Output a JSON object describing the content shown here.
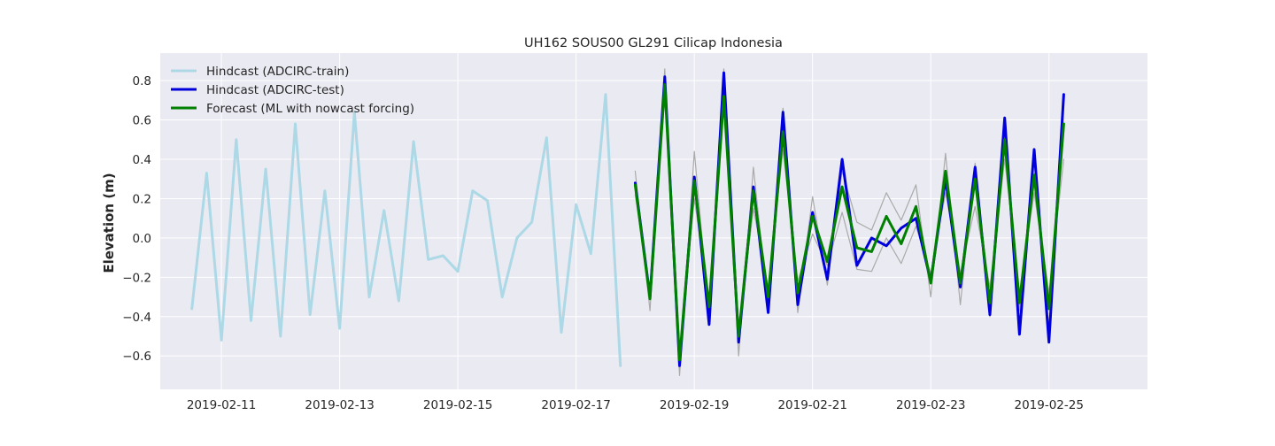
{
  "chart_data": {
    "type": "line",
    "title": "UH162 SOUS00 GL291 Cilicap Indonesia",
    "xlabel": "",
    "ylabel": "Elevation (m)",
    "xlim": [
      "2019-02-09T23:10",
      "2019-02-26T16:00"
    ],
    "ylim": [
      -0.77,
      0.94
    ],
    "x_ticks": [
      "2019-02-11",
      "2019-02-13",
      "2019-02-15",
      "2019-02-17",
      "2019-02-19",
      "2019-02-21",
      "2019-02-23",
      "2019-02-25"
    ],
    "y_ticks": [
      -0.6,
      -0.4,
      -0.2,
      0.0,
      0.2,
      0.4,
      0.6,
      0.8
    ],
    "y_tick_labels": [
      "−0.6",
      "−0.4",
      "−0.2",
      "0.0",
      "0.2",
      "0.4",
      "0.6",
      "0.8"
    ],
    "grid": true,
    "legend_position": "top-left",
    "background": "#eaeaf2",
    "series": [
      {
        "name": "Hindcast (ADCIRC-train)",
        "color": "#add8e6",
        "width": 3,
        "x": [
          "2019-02-10T12:00",
          "2019-02-10T18:00",
          "2019-02-11T00:00",
          "2019-02-11T06:00",
          "2019-02-11T12:00",
          "2019-02-11T18:00",
          "2019-02-12T00:00",
          "2019-02-12T06:00",
          "2019-02-12T12:00",
          "2019-02-12T18:00",
          "2019-02-13T00:00",
          "2019-02-13T06:00",
          "2019-02-13T12:00",
          "2019-02-13T18:00",
          "2019-02-14T00:00",
          "2019-02-14T06:00",
          "2019-02-14T12:00",
          "2019-02-14T18:00",
          "2019-02-15T00:00",
          "2019-02-15T06:00",
          "2019-02-15T12:00",
          "2019-02-15T18:00",
          "2019-02-16T00:00",
          "2019-02-16T06:00",
          "2019-02-16T12:00",
          "2019-02-16T18:00",
          "2019-02-17T00:00",
          "2019-02-17T06:00",
          "2019-02-17T12:00",
          "2019-02-17T18:00"
        ],
        "values": [
          -0.36,
          0.33,
          -0.52,
          0.5,
          -0.42,
          0.35,
          -0.5,
          0.58,
          -0.39,
          0.24,
          -0.46,
          0.64,
          -0.3,
          0.14,
          -0.32,
          0.49,
          -0.11,
          -0.09,
          -0.17,
          0.24,
          0.19,
          -0.3,
          0.0,
          0.08,
          0.51,
          -0.48,
          0.17,
          -0.08,
          0.73,
          -0.65
        ]
      },
      {
        "name": "",
        "color": "#aaaaaa",
        "width": 1.2,
        "x": [
          "2019-02-18T00:00",
          "2019-02-18T06:00",
          "2019-02-18T12:00",
          "2019-02-18T18:00",
          "2019-02-19T00:00",
          "2019-02-19T06:00",
          "2019-02-19T12:00",
          "2019-02-19T18:00",
          "2019-02-20T00:00",
          "2019-02-20T06:00",
          "2019-02-20T12:00",
          "2019-02-20T18:00",
          "2019-02-21T00:00",
          "2019-02-21T06:00",
          "2019-02-21T12:00",
          "2019-02-21T18:00",
          "2019-02-22T00:00",
          "2019-02-22T06:00",
          "2019-02-22T12:00",
          "2019-02-22T18:00",
          "2019-02-23T00:00",
          "2019-02-23T06:00",
          "2019-02-23T12:00",
          "2019-02-23T18:00",
          "2019-02-24T00:00",
          "2019-02-24T06:00",
          "2019-02-24T12:00",
          "2019-02-24T18:00",
          "2019-02-25T00:00",
          "2019-02-25T06:00"
        ],
        "values": [
          0.34,
          -0.37,
          0.86,
          -0.7,
          0.44,
          -0.4,
          0.86,
          -0.6,
          0.36,
          -0.36,
          0.66,
          -0.38,
          0.21,
          -0.24,
          0.34,
          0.08,
          0.04,
          0.23,
          0.09,
          0.27,
          -0.3,
          0.43,
          -0.34,
          0.38,
          -0.4,
          0.56,
          -0.37,
          0.4,
          -0.45,
          0.55
        ]
      },
      {
        "name": "",
        "color": "#aaaaaa",
        "width": 1.2,
        "x": [
          "2019-02-18T00:00",
          "2019-02-18T06:00",
          "2019-02-18T12:00",
          "2019-02-18T18:00",
          "2019-02-19T00:00",
          "2019-02-19T06:00",
          "2019-02-19T12:00",
          "2019-02-19T18:00",
          "2019-02-20T00:00",
          "2019-02-20T06:00",
          "2019-02-20T12:00",
          "2019-02-20T18:00",
          "2019-02-21T00:00",
          "2019-02-21T06:00",
          "2019-02-21T12:00",
          "2019-02-21T18:00",
          "2019-02-22T00:00",
          "2019-02-22T06:00",
          "2019-02-22T12:00",
          "2019-02-22T18:00",
          "2019-02-23T00:00",
          "2019-02-23T06:00",
          "2019-02-23T12:00",
          "2019-02-23T18:00",
          "2019-02-24T00:00",
          "2019-02-24T06:00",
          "2019-02-24T12:00",
          "2019-02-24T18:00",
          "2019-02-25T00:00",
          "2019-02-25T06:00"
        ],
        "values": [
          0.22,
          -0.28,
          0.72,
          -0.6,
          0.2,
          -0.33,
          0.7,
          -0.48,
          0.15,
          -0.25,
          0.45,
          -0.22,
          0.02,
          -0.14,
          0.13,
          -0.16,
          -0.17,
          0.0,
          -0.13,
          0.06,
          -0.18,
          0.23,
          -0.18,
          0.16,
          -0.25,
          0.4,
          -0.28,
          0.23,
          -0.28,
          0.4
        ]
      },
      {
        "name": "Hindcast (ADCIRC-test)",
        "color": "#0000dd",
        "width": 3,
        "x": [
          "2019-02-18T00:00",
          "2019-02-18T06:00",
          "2019-02-18T12:00",
          "2019-02-18T18:00",
          "2019-02-19T00:00",
          "2019-02-19T06:00",
          "2019-02-19T12:00",
          "2019-02-19T18:00",
          "2019-02-20T00:00",
          "2019-02-20T06:00",
          "2019-02-20T12:00",
          "2019-02-20T18:00",
          "2019-02-21T00:00",
          "2019-02-21T06:00",
          "2019-02-21T12:00",
          "2019-02-21T18:00",
          "2019-02-22T00:00",
          "2019-02-22T06:00",
          "2019-02-22T12:00",
          "2019-02-22T18:00",
          "2019-02-23T00:00",
          "2019-02-23T06:00",
          "2019-02-23T12:00",
          "2019-02-23T18:00",
          "2019-02-24T00:00",
          "2019-02-24T06:00",
          "2019-02-24T12:00",
          "2019-02-24T18:00",
          "2019-02-25T00:00",
          "2019-02-25T06:00"
        ],
        "values": [
          0.28,
          -0.3,
          0.82,
          -0.65,
          0.31,
          -0.44,
          0.84,
          -0.53,
          0.26,
          -0.38,
          0.64,
          -0.34,
          0.13,
          -0.21,
          0.4,
          -0.14,
          0.0,
          -0.04,
          0.05,
          0.1,
          -0.22,
          0.3,
          -0.25,
          0.36,
          -0.39,
          0.61,
          -0.49,
          0.45,
          -0.53,
          0.73
        ]
      },
      {
        "name": "Forecast (ML with nowcast forcing)",
        "color": "#008000",
        "width": 3,
        "x": [
          "2019-02-18T00:00",
          "2019-02-18T06:00",
          "2019-02-18T12:00",
          "2019-02-18T18:00",
          "2019-02-19T00:00",
          "2019-02-19T06:00",
          "2019-02-19T12:00",
          "2019-02-19T18:00",
          "2019-02-20T00:00",
          "2019-02-20T06:00",
          "2019-02-20T12:00",
          "2019-02-20T18:00",
          "2019-02-21T00:00",
          "2019-02-21T06:00",
          "2019-02-21T12:00",
          "2019-02-21T18:00",
          "2019-02-22T00:00",
          "2019-02-22T06:00",
          "2019-02-22T12:00",
          "2019-02-22T18:00",
          "2019-02-23T00:00",
          "2019-02-23T06:00",
          "2019-02-23T12:00",
          "2019-02-23T18:00",
          "2019-02-24T00:00",
          "2019-02-24T06:00",
          "2019-02-24T12:00",
          "2019-02-24T18:00",
          "2019-02-25T00:00",
          "2019-02-25T06:00"
        ],
        "values": [
          0.27,
          -0.31,
          0.78,
          -0.62,
          0.29,
          -0.35,
          0.72,
          -0.5,
          0.24,
          -0.3,
          0.54,
          -0.28,
          0.11,
          -0.12,
          0.26,
          -0.05,
          -0.07,
          0.11,
          -0.03,
          0.16,
          -0.23,
          0.34,
          -0.23,
          0.3,
          -0.33,
          0.5,
          -0.33,
          0.32,
          -0.36,
          0.58
        ]
      }
    ]
  }
}
